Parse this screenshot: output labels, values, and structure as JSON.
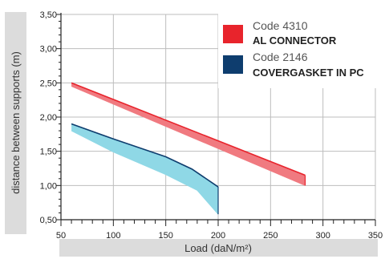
{
  "chart_data": {
    "type": "area",
    "xlabel": "Load (daN/m²)",
    "ylabel": "distance between supports (m)",
    "xlim": [
      50,
      350
    ],
    "ylim": [
      0.5,
      3.5
    ],
    "x_ticks": [
      "50",
      "100",
      "150",
      "200",
      "250",
      "300",
      "350"
    ],
    "y_ticks": [
      "0,50",
      "1,00",
      "1,50",
      "2,00",
      "2,50",
      "3,00",
      "3,50"
    ],
    "grid": true,
    "legend_position": "top-right",
    "series": [
      {
        "code": "Code 4310",
        "name": "AL CONNECTOR",
        "color": "#e8242c",
        "fill_color": "#f07a80",
        "upper": {
          "x": [
            60,
            283
          ],
          "y": [
            2.5,
            1.15
          ]
        },
        "lower": {
          "x": [
            60,
            283
          ],
          "y": [
            2.45,
            1.0
          ]
        }
      },
      {
        "code": "Code 2146",
        "name": "COVERGASKET IN PC",
        "color": "#0e3d6e",
        "fill_color": "#8fd8e6",
        "upper": {
          "x": [
            60,
            100,
            150,
            175,
            200
          ],
          "y": [
            1.9,
            1.68,
            1.42,
            1.24,
            0.98
          ]
        },
        "lower": {
          "x": [
            60,
            100,
            150,
            180,
            200
          ],
          "y": [
            1.8,
            1.49,
            1.16,
            0.93,
            0.58
          ]
        }
      }
    ]
  }
}
